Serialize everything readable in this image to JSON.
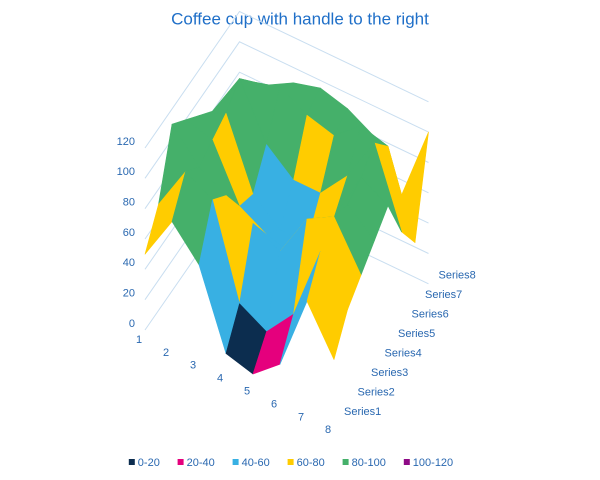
{
  "chart_data": {
    "type": "surface3d",
    "title": "Coffee cup with handle to the right",
    "categories": [
      "1",
      "2",
      "3",
      "4",
      "5",
      "6",
      "7",
      "8"
    ],
    "series": [
      {
        "name": "Series1",
        "values": [
          50,
          80,
          60,
          10,
          5,
          20,
          70,
          40
        ]
      },
      {
        "name": "Series2",
        "values": [
          70,
          100,
          90,
          30,
          20,
          40,
          90,
          60
        ]
      },
      {
        "name": "Series3",
        "values": [
          110,
          90,
          80,
          70,
          60,
          90,
          100,
          70
        ]
      },
      {
        "name": "Series4",
        "values": [
          100,
          95,
          60,
          50,
          45,
          70,
          95,
          80
        ]
      },
      {
        "name": "Series5",
        "values": [
          90,
          100,
          55,
          40,
          40,
          65,
          100,
          90
        ]
      },
      {
        "name": "Series6",
        "values": [
          80,
          110,
          75,
          60,
          60,
          80,
          110,
          60
        ]
      },
      {
        "name": "Series7",
        "values": [
          70,
          95,
          100,
          90,
          85,
          100,
          95,
          40
        ]
      },
      {
        "name": "Series8",
        "values": [
          60,
          80,
          90,
          95,
          90,
          80,
          50,
          100
        ]
      }
    ],
    "zlim": [
      0,
      120
    ],
    "zticks": [
      0,
      20,
      40,
      60,
      80,
      100,
      120
    ],
    "bands": [
      {
        "label": "0-20",
        "min": 0,
        "max": 20,
        "color": "#0c2d4f"
      },
      {
        "label": "20-40",
        "min": 20,
        "max": 40,
        "color": "#e5007d"
      },
      {
        "label": "40-60",
        "min": 40,
        "max": 60,
        "color": "#38b0e3"
      },
      {
        "label": "60-80",
        "min": 60,
        "max": 80,
        "color": "#ffcc00"
      },
      {
        "label": "80-100",
        "min": 80,
        "max": 100,
        "color": "#45b06a"
      },
      {
        "label": "100-120",
        "min": 100,
        "max": 120,
        "color": "#8e0a86"
      }
    ],
    "legend": "bottom"
  }
}
